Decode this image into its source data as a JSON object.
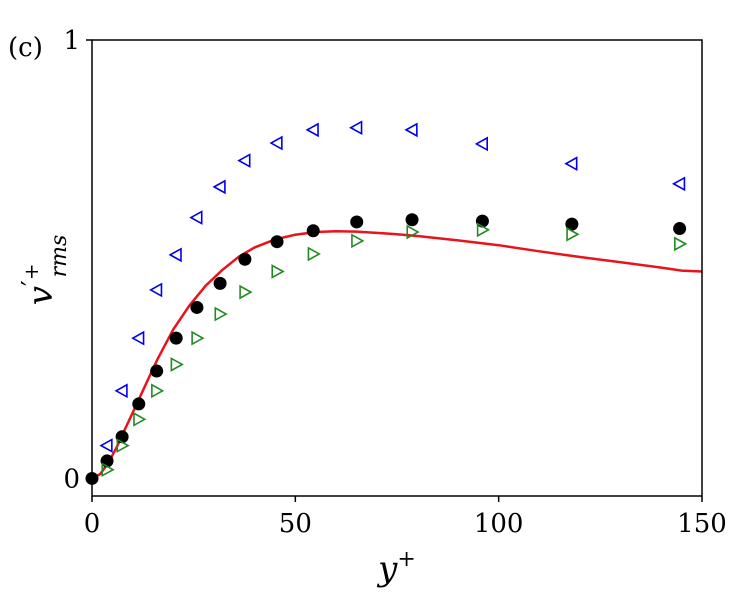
{
  "chart_data": {
    "type": "scatter",
    "panel_label": "(c)",
    "xlabel": {
      "base": "y",
      "sup": "+"
    },
    "ylabel": {
      "base": "v",
      "prime": "′",
      "sup": "+",
      "sub": "rms"
    },
    "xlim": [
      0,
      150
    ],
    "ylim": [
      -0.04,
      1.0
    ],
    "x_ticks": [
      {
        "value": 0,
        "label": "0"
      },
      {
        "value": 50,
        "label": "50"
      },
      {
        "value": 100,
        "label": "100"
      },
      {
        "value": 150,
        "label": "150"
      }
    ],
    "y_ticks": [
      {
        "value": 0,
        "label": "0"
      },
      {
        "value": 1,
        "label": "1"
      }
    ],
    "grid": false,
    "legend": "none",
    "series": [
      {
        "kind": "line",
        "color": "#e8141c",
        "x": [
          0,
          2,
          4,
          6,
          8,
          10,
          12,
          14,
          16,
          18,
          20,
          24,
          28,
          32,
          36,
          40,
          45,
          50,
          55,
          60,
          65,
          70,
          75,
          80,
          90,
          100,
          110,
          120,
          130,
          140,
          145,
          150
        ],
        "y": [
          0,
          0.01,
          0.035,
          0.07,
          0.11,
          0.15,
          0.19,
          0.23,
          0.27,
          0.305,
          0.34,
          0.395,
          0.44,
          0.475,
          0.505,
          0.527,
          0.545,
          0.556,
          0.562,
          0.564,
          0.563,
          0.56,
          0.557,
          0.553,
          0.543,
          0.532,
          0.518,
          0.505,
          0.493,
          0.481,
          0.474,
          0.472
        ]
      },
      {
        "kind": "marker",
        "marker": "filled-circle",
        "color": "#000000",
        "x": [
          0,
          3.7,
          7.4,
          11.5,
          15.9,
          20.7,
          25.8,
          31.5,
          37.6,
          45.5,
          54.4,
          65.1,
          78.7,
          96.0,
          118.0,
          144.5
        ],
        "y": [
          0,
          0.04,
          0.095,
          0.17,
          0.245,
          0.32,
          0.39,
          0.445,
          0.5,
          0.54,
          0.565,
          0.585,
          0.59,
          0.587,
          0.58,
          0.57
        ]
      },
      {
        "kind": "marker",
        "marker": "open-triangle-left",
        "color": "#0000ee",
        "x": [
          3.7,
          7.4,
          11.5,
          15.9,
          20.7,
          25.8,
          31.5,
          37.6,
          45.5,
          54.4,
          65.1,
          78.7,
          96.0,
          118.0,
          144.5
        ],
        "y": [
          0.075,
          0.2,
          0.32,
          0.43,
          0.51,
          0.595,
          0.665,
          0.725,
          0.765,
          0.795,
          0.8,
          0.795,
          0.763,
          0.718,
          0.672
        ]
      },
      {
        "kind": "marker",
        "marker": "open-triangle-right",
        "color": "#228b22",
        "x": [
          3.7,
          7.4,
          11.5,
          15.9,
          20.7,
          25.8,
          31.5,
          37.6,
          45.5,
          54.4,
          65.1,
          78.7,
          96.0,
          118.0,
          144.5
        ],
        "y": [
          0.02,
          0.075,
          0.135,
          0.2,
          0.26,
          0.32,
          0.375,
          0.425,
          0.472,
          0.512,
          0.542,
          0.562,
          0.567,
          0.557,
          0.535
        ]
      }
    ]
  }
}
